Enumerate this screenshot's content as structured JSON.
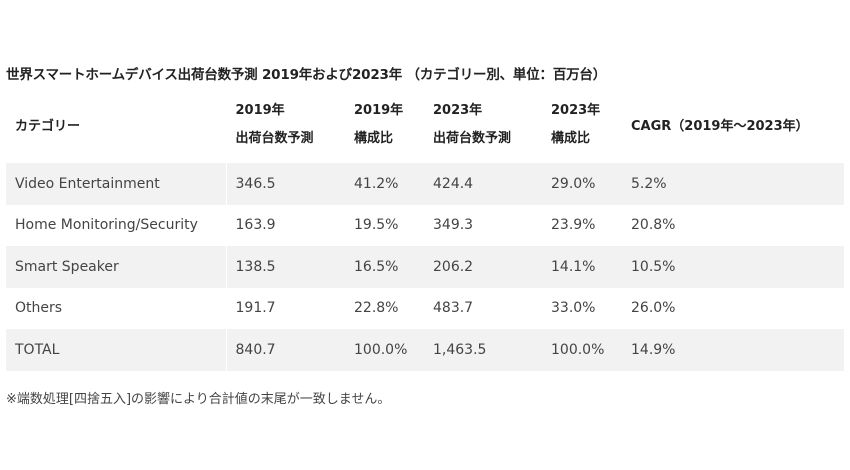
{
  "title": "世界スマートホームデバイス出荷台数予測 2019年および2023年 （カテゴリー別、単位：百万台）",
  "headers": [
    {
      "line1": "カテゴリー",
      "line2": ""
    },
    {
      "line1": "2019年",
      "line2": "出荷台数予測"
    },
    {
      "line1": "2019年",
      "line2": "構成比"
    },
    {
      "line1": "2023年",
      "line2": "出荷台数予測"
    },
    {
      "line1": "2023年",
      "line2": "構成比"
    },
    {
      "line1": "CAGR（2019年～2023年）",
      "line2": ""
    }
  ],
  "rows": [
    [
      "Video Entertainment",
      "346.5",
      "41.2%",
      "424.4",
      "29.0%",
      "5.2%"
    ],
    [
      "Home Monitoring/Security",
      "163.9",
      "19.5%",
      "349.3",
      "23.9%",
      "20.8%"
    ],
    [
      "Smart Speaker",
      "138.5",
      "16.5%",
      "206.2",
      "14.1%",
      "10.5%"
    ],
    [
      "Others",
      "191.7",
      "22.8%",
      "483.7",
      "33.0%",
      "26.0%"
    ],
    [
      "TOTAL",
      "840.7",
      "100.0%",
      "1,463.5",
      "100.0%",
      "14.9%"
    ]
  ],
  "note": "※端数処理[四捨五入]の影響により合計値の末尾が一致しません。"
}
